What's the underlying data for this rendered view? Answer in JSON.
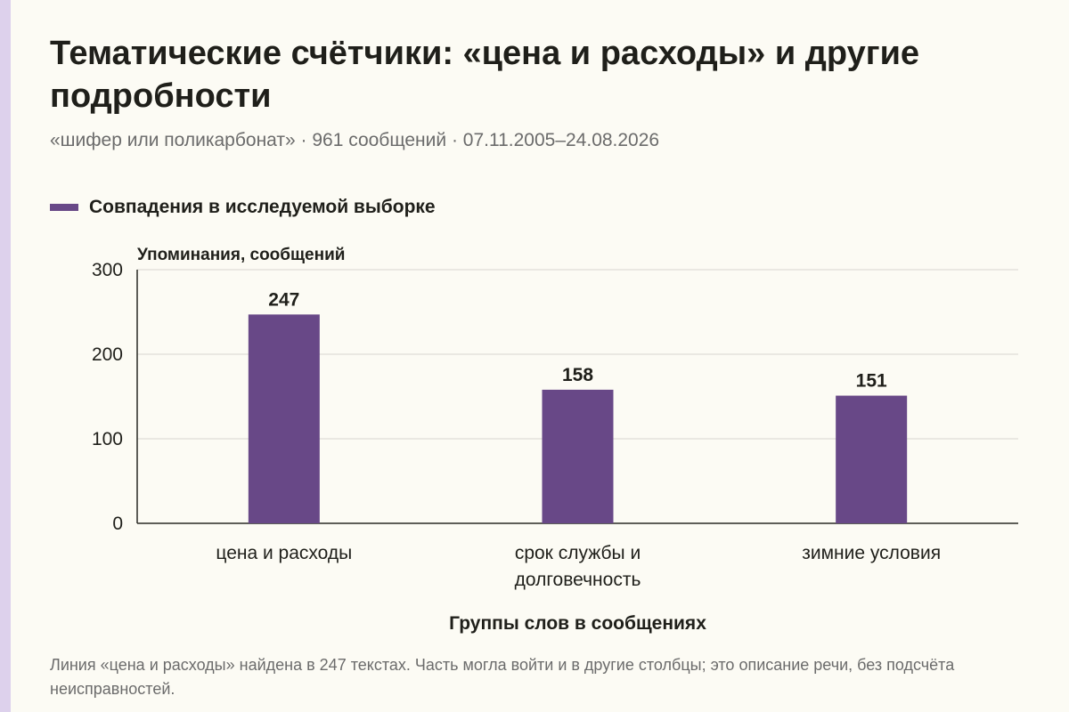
{
  "colors": {
    "bar": "#684887",
    "grid": "#d8d6cf",
    "axis": "#2a2a25",
    "text": "#1f1f1a",
    "muted": "#6b6b6b",
    "strip": "#ddd1ec"
  },
  "header": {
    "title": "Тематические счётчики: «цена и расходы» и другие подробности",
    "subtitle": "«шифер или поликарбонат» · 961 сообщений · 07.11.2005–24.08.2026"
  },
  "footer": {
    "note": "Линия «цена и расходы» найдена в 247 текстах. Часть могла войти и в другие столбцы; это описание речи, без подсчёта неисправностей."
  },
  "chart_data": {
    "type": "bar",
    "categories": [
      [
        "цена и расходы"
      ],
      [
        "срок службы и",
        "долговечность"
      ],
      [
        "зимние условия"
      ]
    ],
    "series": [
      {
        "name": "Совпадения в исследуемой выборке",
        "values": [
          247,
          158,
          151
        ]
      }
    ],
    "ylabel": "Упоминания, сообщений",
    "xlabel": "Группы слов в сообщениях",
    "ylim": [
      0,
      300
    ],
    "yticks": [
      0,
      100,
      200,
      300
    ],
    "grid": true,
    "legend": "top-left",
    "data_labels": true
  }
}
